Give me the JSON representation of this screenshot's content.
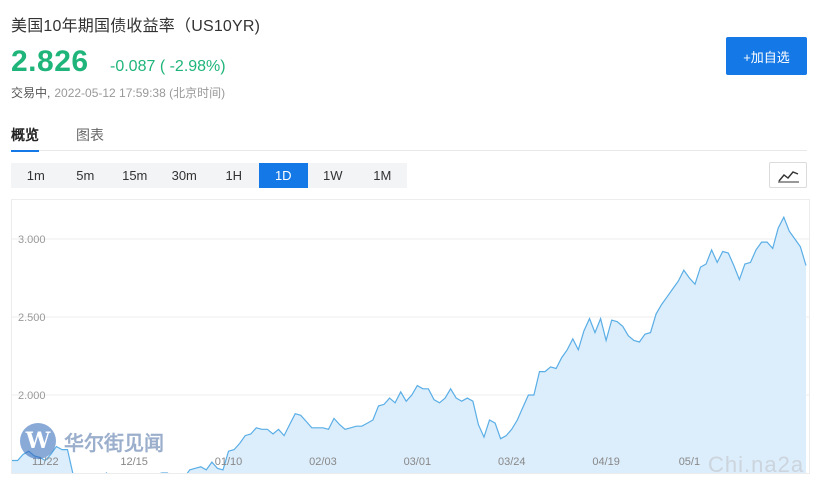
{
  "header": {
    "title": "美国10年期国债收益率（US10YR)",
    "price": "2.826",
    "change": "-0.087 ( -2.98%)",
    "status": "交易中,",
    "timestamp": "2022-05-12 17:59:38 (北京时间)",
    "add_button": "+加自选",
    "accent_color": "#1478e6",
    "down_color": "#1fb57a"
  },
  "tabs": [
    {
      "label": "概览",
      "active": true
    },
    {
      "label": "图表",
      "active": false
    }
  ],
  "periods": [
    {
      "label": "1m",
      "active": false
    },
    {
      "label": "5m",
      "active": false
    },
    {
      "label": "15m",
      "active": false
    },
    {
      "label": "30m",
      "active": false
    },
    {
      "label": "1H",
      "active": false
    },
    {
      "label": "1D",
      "active": true
    },
    {
      "label": "1W",
      "active": false
    },
    {
      "label": "1M",
      "active": false
    }
  ],
  "chart_type_icon": "line-chart-icon",
  "watermark": {
    "logo_letter": "W",
    "text": "华尔街见闻",
    "text2": "Chi.na2a"
  },
  "chart_data": {
    "type": "area",
    "title": "",
    "xlabel": "",
    "ylabel": "",
    "ylim": [
      1.5,
      3.25
    ],
    "yticks": [
      3.0,
      2.5,
      2.0
    ],
    "ytick_labels": [
      "3.000",
      "2.500",
      "2.000"
    ],
    "xticks": [
      {
        "label": "11/22",
        "index": 6
      },
      {
        "label": "12/15",
        "index": 22
      },
      {
        "label": "01/10",
        "index": 39
      },
      {
        "label": "02/03",
        "index": 56
      },
      {
        "label": "03/01",
        "index": 73
      },
      {
        "label": "03/24",
        "index": 90
      },
      {
        "label": "04/19",
        "index": 107
      },
      {
        "label": "05/1",
        "index": 122
      }
    ],
    "grid": true,
    "line_color": "#5aaee6",
    "fill_color": "#dcedfb",
    "series": [
      {
        "values": [
          1.58,
          1.58,
          1.62,
          1.64,
          1.61,
          1.6,
          1.58,
          1.62,
          1.67,
          1.65,
          1.65,
          1.49,
          1.48,
          1.47,
          1.45,
          1.44,
          1.43,
          1.5,
          1.47,
          1.41,
          1.48,
          1.45,
          1.44,
          1.43,
          1.42,
          1.46,
          1.49,
          1.5,
          1.5,
          1.47,
          1.45,
          1.47,
          1.52,
          1.53,
          1.54,
          1.52,
          1.57,
          1.53,
          1.52,
          1.64,
          1.65,
          1.69,
          1.74,
          1.75,
          1.79,
          1.78,
          1.78,
          1.75,
          1.78,
          1.74,
          1.81,
          1.88,
          1.87,
          1.83,
          1.79,
          1.79,
          1.79,
          1.78,
          1.85,
          1.81,
          1.78,
          1.79,
          1.8,
          1.8,
          1.82,
          1.84,
          1.93,
          1.94,
          1.98,
          1.95,
          2.02,
          1.96,
          2.0,
          2.06,
          2.04,
          2.04,
          1.97,
          1.95,
          1.98,
          2.04,
          1.98,
          1.96,
          1.98,
          1.96,
          1.81,
          1.73,
          1.84,
          1.82,
          1.72,
          1.74,
          1.78,
          1.84,
          1.92,
          2.0,
          2.0,
          2.15,
          2.15,
          2.18,
          2.17,
          2.24,
          2.29,
          2.36,
          2.29,
          2.41,
          2.49,
          2.4,
          2.49,
          2.35,
          2.48,
          2.47,
          2.44,
          2.38,
          2.35,
          2.34,
          2.39,
          2.4,
          2.52,
          2.58,
          2.63,
          2.68,
          2.73,
          2.8,
          2.75,
          2.71,
          2.82,
          2.84,
          2.93,
          2.85,
          2.92,
          2.91,
          2.83,
          2.74,
          2.84,
          2.85,
          2.93,
          2.98,
          2.98,
          2.94,
          3.07,
          3.14,
          3.05,
          3.0,
          2.95,
          2.83
        ]
      }
    ]
  }
}
